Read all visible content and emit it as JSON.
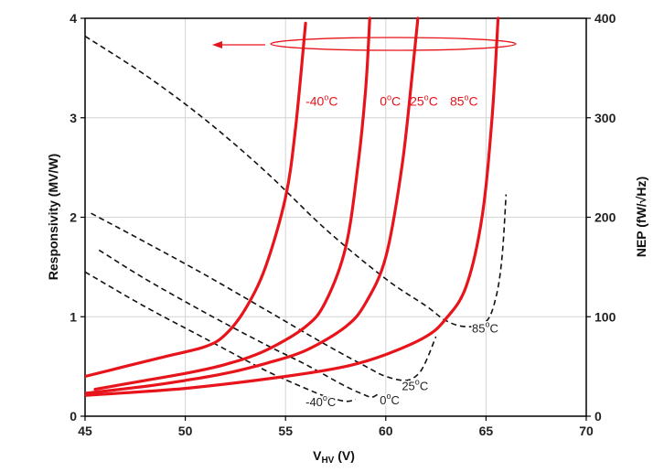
{
  "chart_data": {
    "type": "line",
    "xlabel_main": "V",
    "xlabel_sub": "HV",
    "xlabel_unit": " (V)",
    "ylabel_left": "Responsivity (MV/W)",
    "ylabel_right": "NEP (fW/√Hz)",
    "xlim": [
      45,
      70
    ],
    "ylim_left": [
      0,
      4
    ],
    "ylim_right": [
      0,
      400
    ],
    "x_ticks": [
      "45",
      "50",
      "55",
      "60",
      "65",
      "70"
    ],
    "y_left_ticks": [
      "0",
      "1",
      "2",
      "3",
      "4"
    ],
    "y_right_ticks": [
      "0",
      "100",
      "200",
      "300",
      "400"
    ],
    "grid": true,
    "arrow_direction": "left",
    "responsivity_series": [
      {
        "label": "-40°C",
        "label_parts": [
          "-40",
          "o",
          "C"
        ],
        "color": "#e8141b",
        "points": [
          [
            45,
            0.4
          ],
          [
            47,
            0.5
          ],
          [
            49,
            0.6
          ],
          [
            51,
            0.7
          ],
          [
            52,
            0.82
          ],
          [
            53,
            1.08
          ],
          [
            54,
            1.5
          ],
          [
            55,
            2.2
          ],
          [
            55.5,
            2.9
          ],
          [
            56,
            3.95
          ]
        ]
      },
      {
        "label": "0°C",
        "label_parts": [
          "0",
          "o",
          "C"
        ],
        "color": "#e8141b",
        "points": [
          [
            45.5,
            0.27
          ],
          [
            48,
            0.36
          ],
          [
            50,
            0.43
          ],
          [
            52,
            0.52
          ],
          [
            54,
            0.66
          ],
          [
            56,
            0.9
          ],
          [
            57,
            1.15
          ],
          [
            58,
            1.7
          ],
          [
            58.6,
            2.5
          ],
          [
            59,
            3.3
          ],
          [
            59.2,
            4.0
          ]
        ]
      },
      {
        "label": "25°C",
        "label_parts": [
          "25",
          "o",
          "C"
        ],
        "color": "#e8141b",
        "points": [
          [
            45,
            0.23
          ],
          [
            48,
            0.3
          ],
          [
            50,
            0.36
          ],
          [
            52,
            0.43
          ],
          [
            54,
            0.53
          ],
          [
            56,
            0.66
          ],
          [
            58,
            0.9
          ],
          [
            59,
            1.14
          ],
          [
            60,
            1.6
          ],
          [
            60.8,
            2.5
          ],
          [
            61.3,
            3.4
          ],
          [
            61.6,
            4.0
          ]
        ]
      },
      {
        "label": "85°C",
        "label_parts": [
          "85",
          "o",
          "C"
        ],
        "color": "#e8141b",
        "points": [
          [
            45,
            0.21
          ],
          [
            50,
            0.28
          ],
          [
            55,
            0.4
          ],
          [
            58,
            0.5
          ],
          [
            60,
            0.62
          ],
          [
            62,
            0.8
          ],
          [
            63,
            0.98
          ],
          [
            64,
            1.3
          ],
          [
            64.8,
            2.0
          ],
          [
            65.3,
            3.0
          ],
          [
            65.6,
            4.0
          ]
        ]
      }
    ],
    "nep_series": [
      {
        "label": "-40°C",
        "label_parts": [
          "-40",
          "o",
          "C"
        ],
        "points": [
          [
            45,
            145
          ],
          [
            48,
            110
          ],
          [
            51,
            78
          ],
          [
            54,
            46
          ],
          [
            56,
            28
          ],
          [
            57,
            20
          ],
          [
            58,
            15
          ],
          [
            58.5,
            17
          ]
        ]
      },
      {
        "label": "0°C",
        "label_parts": [
          "0",
          "o",
          "C"
        ],
        "points": [
          [
            45.7,
            167
          ],
          [
            48,
            138
          ],
          [
            51,
            104
          ],
          [
            54,
            72
          ],
          [
            56,
            52
          ],
          [
            58,
            30
          ],
          [
            59,
            21
          ],
          [
            59.3,
            19
          ],
          [
            59.6,
            22
          ]
        ]
      },
      {
        "label": "25°C",
        "label_parts": [
          "25",
          "o",
          "C"
        ],
        "points": [
          [
            45.3,
            204
          ],
          [
            48,
            175
          ],
          [
            51,
            142
          ],
          [
            54,
            107
          ],
          [
            57,
            72
          ],
          [
            59,
            50
          ],
          [
            60,
            40
          ],
          [
            61,
            36
          ],
          [
            61.6,
            42
          ],
          [
            62,
            55
          ],
          [
            62.5,
            80
          ]
        ]
      },
      {
        "label": "85°C",
        "label_parts": [
          "85",
          "o",
          "C"
        ],
        "points": [
          [
            45,
            382
          ],
          [
            48,
            343
          ],
          [
            51,
            298
          ],
          [
            54,
            246
          ],
          [
            57,
            188
          ],
          [
            60,
            138
          ],
          [
            62,
            111
          ],
          [
            63,
            96
          ],
          [
            64,
            90
          ],
          [
            65,
            95
          ],
          [
            65.5,
            120
          ],
          [
            65.8,
            160
          ],
          [
            66,
            223
          ]
        ]
      }
    ]
  }
}
